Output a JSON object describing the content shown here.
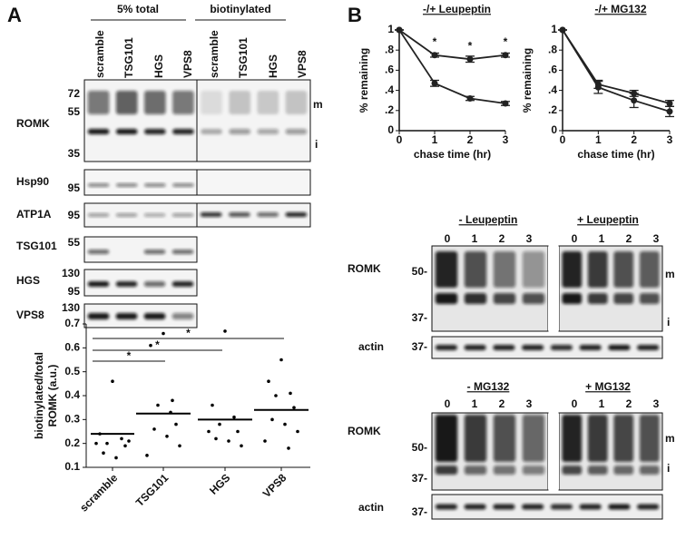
{
  "panel_a": {
    "label": "A",
    "group_labels": [
      "5% total",
      "biotinylated"
    ],
    "lanes": [
      "scramble",
      "TSG101",
      "HGS",
      "VPS8",
      "scramble",
      "TSG101",
      "HGS",
      "VPS8"
    ],
    "blots": [
      {
        "protein": "ROMK",
        "markers": [
          "72",
          "55",
          "35"
        ]
      },
      {
        "protein": "Hsp90",
        "markers": [
          "95"
        ]
      },
      {
        "protein": "ATP1A",
        "markers": [
          "95"
        ]
      },
      {
        "protein": "TSG101",
        "markers": [
          "55"
        ]
      },
      {
        "protein": "HGS",
        "markers": [
          "130",
          "95"
        ]
      },
      {
        "protein": "VPS8",
        "markers": [
          "130"
        ]
      }
    ],
    "band_labels": [
      "m",
      "i"
    ]
  },
  "panel_b": {
    "label": "B",
    "blot_sets": [
      {
        "conditions": [
          "- Leupeptin",
          "+ Leupeptin"
        ],
        "lanes": [
          "0",
          "1",
          "2",
          "3",
          "0",
          "1",
          "2",
          "3"
        ],
        "blots": [
          {
            "protein": "ROMK",
            "markers": [
              "50-",
              "37-"
            ]
          },
          {
            "protein": "actin",
            "markers": [
              "37-"
            ]
          }
        ],
        "band_labels": [
          "m",
          "i"
        ]
      },
      {
        "conditions": [
          "- MG132",
          "+ MG132"
        ],
        "lanes": [
          "0",
          "1",
          "2",
          "3",
          "0",
          "1",
          "2",
          "3"
        ],
        "blots": [
          {
            "protein": "ROMK",
            "markers": [
              "50-",
              "37-"
            ]
          },
          {
            "protein": "actin",
            "markers": [
              "37-"
            ]
          }
        ],
        "band_labels": [
          "m",
          "i"
        ]
      }
    ]
  },
  "chart_data": [
    {
      "type": "dot",
      "y_label": [
        "biotinylated/total",
        "ROMK (a.u.)"
      ],
      "categories": [
        "scramble",
        "TSG101",
        "HGS",
        "VPS8"
      ],
      "points": [
        [
          0.46,
          0.24,
          0.22,
          0.2,
          0.19,
          0.16,
          0.14,
          0.21,
          0.2
        ],
        [
          0.66,
          0.61,
          0.38,
          0.36,
          0.28,
          0.26,
          0.23,
          0.19,
          0.15,
          0.33
        ],
        [
          0.67,
          0.36,
          0.31,
          0.28,
          0.25,
          0.22,
          0.21,
          0.19,
          0.25
        ],
        [
          0.55,
          0.46,
          0.41,
          0.4,
          0.35,
          0.3,
          0.28,
          0.25,
          0.21,
          0.18
        ]
      ],
      "means": [
        0.24,
        0.325,
        0.3,
        0.34
      ],
      "color": "#000000",
      "ylim": [
        0.1,
        0.7
      ],
      "yticks": [
        0.1,
        0.2,
        0.3,
        0.4,
        0.5,
        0.6,
        0.7
      ],
      "annotations": [
        "*",
        "*",
        "*"
      ]
    },
    {
      "type": "line",
      "title": "-/+ Leupeptin",
      "x_label": "chase time (hr)",
      "y_label": "% remaining",
      "x": [
        0,
        1,
        2,
        3
      ],
      "xlim": [
        0,
        3
      ],
      "xticks": [
        0,
        1,
        2,
        3
      ],
      "ylim": [
        0,
        1
      ],
      "yticks": [
        0,
        {
          "value": 0.2,
          "label": ".2"
        },
        {
          "value": 0.4,
          "label": ".4"
        },
        {
          "value": 0.6,
          "label": ".6"
        },
        {
          "value": 0.8,
          "label": ".8"
        },
        1
      ],
      "series": [
        {
          "color": "#222222",
          "values": [
            1,
            0.75,
            0.71,
            0.75
          ],
          "errors": [
            0,
            0.02,
            0.03,
            0.02
          ]
        },
        {
          "color": "#222222",
          "values": [
            1,
            0.47,
            0.32,
            0.27
          ],
          "errors": [
            0,
            0.03,
            0.02,
            0.02
          ]
        }
      ],
      "annotations": [
        "*",
        "*",
        "*"
      ]
    },
    {
      "type": "line",
      "title": "-/+ MG132",
      "x_label": "chase time (hr)",
      "y_label": "% remaining",
      "x": [
        0,
        1,
        2,
        3
      ],
      "xlim": [
        0,
        3
      ],
      "xticks": [
        0,
        1,
        2,
        3
      ],
      "ylim": [
        0,
        1
      ],
      "yticks": [
        0,
        {
          "value": 0.2,
          "label": ".2"
        },
        {
          "value": 0.4,
          "label": ".4"
        },
        {
          "value": 0.6,
          "label": ".6"
        },
        {
          "value": 0.8,
          "label": ".8"
        },
        1
      ],
      "series": [
        {
          "color": "#222222",
          "values": [
            1,
            0.46,
            0.37,
            0.27
          ],
          "errors": [
            0,
            0.04,
            0.03,
            0.03
          ]
        },
        {
          "color": "#222222",
          "values": [
            1,
            0.43,
            0.3,
            0.19
          ],
          "errors": [
            0,
            0.06,
            0.07,
            0.05
          ]
        }
      ]
    }
  ]
}
